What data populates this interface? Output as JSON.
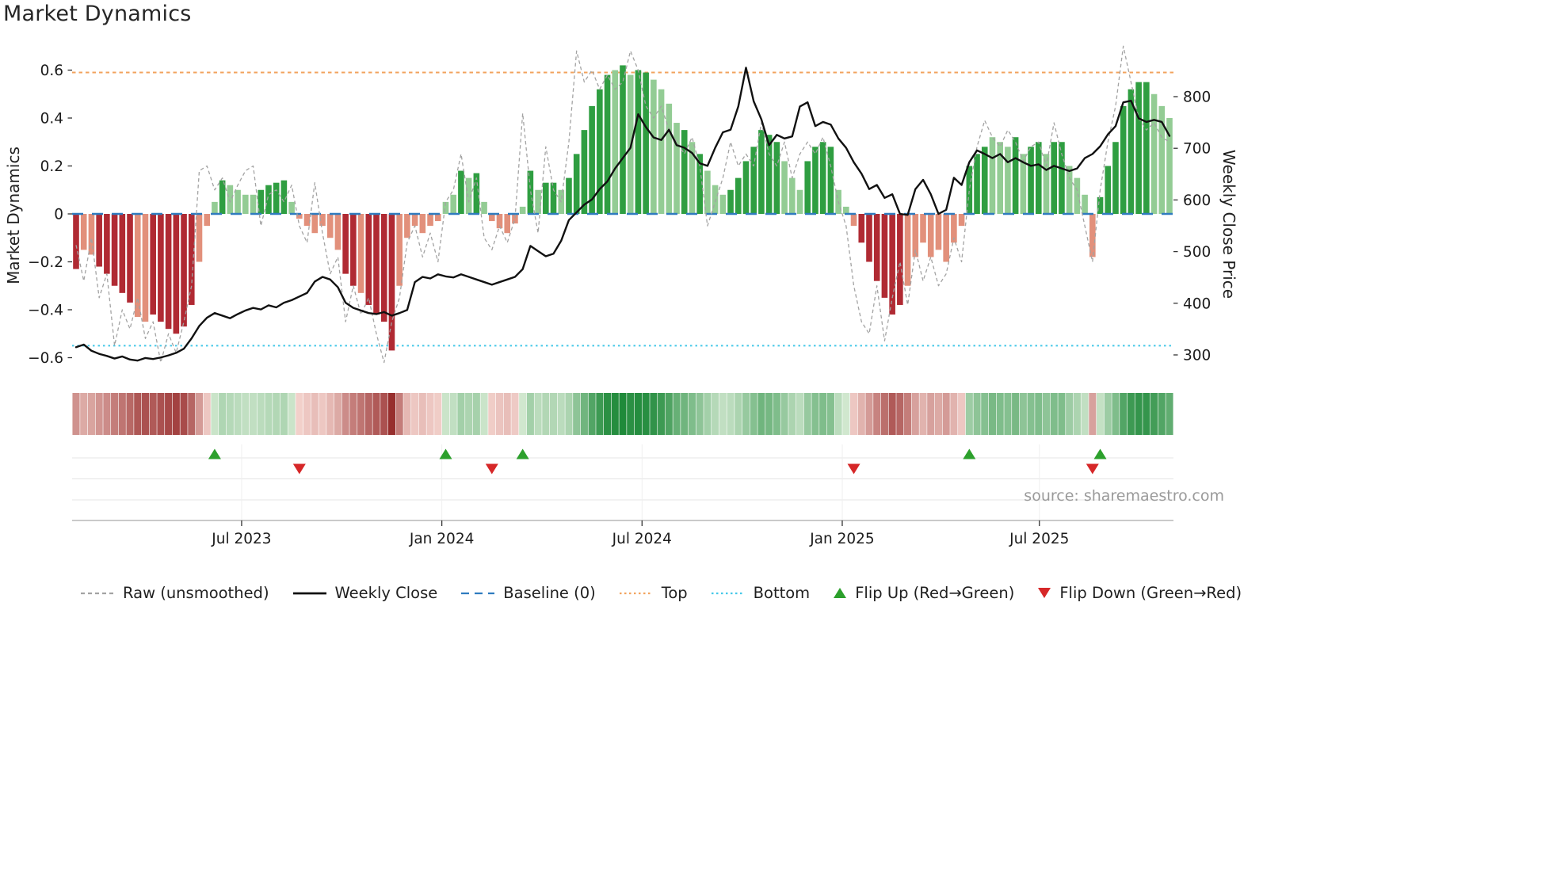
{
  "chart_data": {
    "type": "bar",
    "title": "Market Dynamics",
    "source": "source: sharemaestro.com",
    "left_axis": {
      "label": "Market Dynamics",
      "min": -0.7,
      "max": 0.7,
      "ticks": [
        {
          "v": 0.6,
          "label": "0.6"
        },
        {
          "v": 0.4,
          "label": "0.4"
        },
        {
          "v": 0.2,
          "label": "0.2"
        },
        {
          "v": 0,
          "label": "0"
        },
        {
          "v": -0.2,
          "label": "−0.2"
        },
        {
          "v": -0.4,
          "label": "−0.4"
        },
        {
          "v": -0.6,
          "label": "−0.6"
        }
      ]
    },
    "right_axis": {
      "label": "Weekly Close Price",
      "min": 250,
      "max": 895,
      "ticks": [
        {
          "v": 800,
          "label": "800"
        },
        {
          "v": 700,
          "label": "700"
        },
        {
          "v": 600,
          "label": "600"
        },
        {
          "v": 500,
          "label": "500"
        },
        {
          "v": 400,
          "label": "400"
        },
        {
          "v": 300,
          "label": "300"
        }
      ]
    },
    "x_ticks": [
      {
        "pos": 21.5,
        "label": "Jul 2023"
      },
      {
        "pos": 47.5,
        "label": "Jan 2024"
      },
      {
        "pos": 73.5,
        "label": "Jul 2024"
      },
      {
        "pos": 99.5,
        "label": "Jan 2025"
      },
      {
        "pos": 125.1,
        "label": "Jul 2025"
      }
    ],
    "reference_lines": {
      "baseline": 0,
      "top": 0.59,
      "bottom": -0.55
    },
    "series": {
      "oscillator": [
        -0.23,
        -0.15,
        -0.17,
        -0.22,
        -0.25,
        -0.3,
        -0.33,
        -0.37,
        -0.43,
        -0.45,
        -0.42,
        -0.45,
        -0.48,
        -0.5,
        -0.47,
        -0.38,
        -0.2,
        -0.05,
        0.05,
        0.14,
        0.12,
        0.1,
        0.08,
        0.08,
        0.1,
        0.12,
        0.13,
        0.14,
        0.05,
        -0.02,
        -0.05,
        -0.08,
        -0.05,
        -0.1,
        -0.15,
        -0.25,
        -0.3,
        -0.33,
        -0.38,
        -0.42,
        -0.45,
        -0.57,
        -0.3,
        -0.1,
        -0.05,
        -0.08,
        -0.05,
        -0.03,
        0.05,
        0.08,
        0.18,
        0.15,
        0.17,
        0.05,
        -0.03,
        -0.06,
        -0.08,
        -0.04,
        0.03,
        0.18,
        0.1,
        0.13,
        0.13,
        0.1,
        0.15,
        0.25,
        0.35,
        0.45,
        0.52,
        0.58,
        0.6,
        0.62,
        0.58,
        0.6,
        0.59,
        0.56,
        0.52,
        0.46,
        0.38,
        0.35,
        0.3,
        0.25,
        0.18,
        0.12,
        0.08,
        0.1,
        0.15,
        0.22,
        0.28,
        0.35,
        0.33,
        0.3,
        0.22,
        0.15,
        0.1,
        0.22,
        0.28,
        0.3,
        0.28,
        0.1,
        0.03,
        -0.05,
        -0.12,
        -0.2,
        -0.28,
        -0.35,
        -0.42,
        -0.38,
        -0.3,
        -0.18,
        -0.12,
        -0.18,
        -0.15,
        -0.2,
        -0.12,
        -0.05,
        0.2,
        0.25,
        0.28,
        0.32,
        0.3,
        0.28,
        0.32,
        0.25,
        0.28,
        0.3,
        0.25,
        0.3,
        0.3,
        0.2,
        0.15,
        0.08,
        -0.18,
        0.07,
        0.2,
        0.3,
        0.45,
        0.52,
        0.55,
        0.55,
        0.5,
        0.45,
        0.4
      ],
      "bar_shades": [
        "dr",
        "lr",
        "lr",
        "dr",
        "dr",
        "dr",
        "dr",
        "dr",
        "lr",
        "lr",
        "dr",
        "dr",
        "dr",
        "dr",
        "dr",
        "dr",
        "lr",
        "lr",
        "lg",
        "dg",
        "lg",
        "lg",
        "lg",
        "lg",
        "dg",
        "dg",
        "dg",
        "dg",
        "lg",
        "lr",
        "lr",
        "lr",
        "lr",
        "lr",
        "lr",
        "dr",
        "dr",
        "lr",
        "dr",
        "dr",
        "dr",
        "dr",
        "lr",
        "lr",
        "lr",
        "lr",
        "lr",
        "lr",
        "lg",
        "lg",
        "dg",
        "lg",
        "dg",
        "lg",
        "lr",
        "lr",
        "lr",
        "lr",
        "lg",
        "dg",
        "lg",
        "dg",
        "dg",
        "lg",
        "dg",
        "dg",
        "dg",
        "dg",
        "dg",
        "dg",
        "lg",
        "dg",
        "lg",
        "dg",
        "dg",
        "lg",
        "lg",
        "lg",
        "lg",
        "dg",
        "lg",
        "dg",
        "lg",
        "lg",
        "lg",
        "dg",
        "dg",
        "dg",
        "dg",
        "dg",
        "dg",
        "dg",
        "lg",
        "lg",
        "lg",
        "dg",
        "dg",
        "dg",
        "dg",
        "lg",
        "lg",
        "lr",
        "dr",
        "dr",
        "dr",
        "dr",
        "dr",
        "dr",
        "lr",
        "lr",
        "lr",
        "lr",
        "lr",
        "lr",
        "lr",
        "lr",
        "dg",
        "dg",
        "dg",
        "lg",
        "lg",
        "lg",
        "dg",
        "lg",
        "dg",
        "dg",
        "lg",
        "dg",
        "dg",
        "lg",
        "lg",
        "lg",
        "lr",
        "dg",
        "dg",
        "dg",
        "dg",
        "dg",
        "dg",
        "dg",
        "lg",
        "lg",
        "lg"
      ],
      "weekly_close": [
        315,
        320,
        308,
        302,
        298,
        293,
        297,
        291,
        289,
        294,
        292,
        295,
        299,
        304,
        312,
        332,
        356,
        372,
        381,
        376,
        371,
        379,
        386,
        391,
        388,
        396,
        392,
        401,
        406,
        413,
        420,
        442,
        451,
        446,
        431,
        401,
        391,
        386,
        381,
        379,
        383,
        376,
        381,
        387,
        441,
        451,
        448,
        456,
        452,
        450,
        456,
        451,
        446,
        441,
        436,
        441,
        446,
        451,
        466,
        511,
        501,
        491,
        496,
        521,
        561,
        576,
        591,
        601,
        621,
        636,
        661,
        681,
        701,
        766,
        741,
        721,
        716,
        736,
        706,
        701,
        691,
        671,
        666,
        701,
        731,
        736,
        781,
        856,
        791,
        756,
        706,
        726,
        719,
        723,
        781,
        789,
        743,
        751,
        746,
        719,
        701,
        673,
        651,
        621,
        629,
        604,
        611,
        573,
        571,
        621,
        639,
        611,
        573,
        581,
        643,
        629,
        673,
        696,
        689,
        681,
        689,
        673,
        681,
        673,
        666,
        669,
        658,
        666,
        661,
        656,
        661,
        681,
        689,
        704,
        727,
        743,
        789,
        792,
        758,
        751,
        755,
        751,
        724
      ],
      "raw": [
        -0.13,
        -0.28,
        -0.1,
        -0.35,
        -0.25,
        -0.55,
        -0.4,
        -0.48,
        -0.35,
        -0.52,
        -0.45,
        -0.62,
        -0.5,
        -0.58,
        -0.45,
        -0.3,
        0.18,
        0.2,
        0.1,
        0.15,
        0.05,
        0.12,
        0.18,
        0.2,
        -0.05,
        0.08,
        0.1,
        0.05,
        0.12,
        -0.05,
        -0.12,
        0.13,
        -0.08,
        -0.25,
        -0.18,
        -0.45,
        -0.3,
        -0.42,
        -0.35,
        -0.5,
        -0.62,
        -0.45,
        -0.35,
        -0.12,
        -0.05,
        -0.18,
        -0.08,
        -0.2,
        0.05,
        0.1,
        0.25,
        0.05,
        0.15,
        -0.1,
        -0.15,
        -0.05,
        -0.12,
        -0.02,
        0.42,
        0.1,
        -0.08,
        0.28,
        0.1,
        0.05,
        0.3,
        0.68,
        0.55,
        0.6,
        0.52,
        0.58,
        0.52,
        0.55,
        0.68,
        0.6,
        0.45,
        0.4,
        0.45,
        0.35,
        0.3,
        0.25,
        0.32,
        0.2,
        -0.05,
        0.05,
        0.15,
        0.3,
        0.2,
        0.25,
        0.2,
        0.38,
        0.25,
        0.2,
        0.3,
        0.15,
        0.25,
        0.3,
        0.25,
        0.32,
        0.2,
        0.05,
        -0.05,
        -0.3,
        -0.45,
        -0.5,
        -0.3,
        -0.53,
        -0.35,
        -0.2,
        -0.38,
        -0.15,
        -0.28,
        -0.18,
        -0.3,
        -0.25,
        -0.1,
        -0.2,
        0.1,
        0.28,
        0.39,
        0.32,
        0.28,
        0.35,
        0.3,
        0.22,
        0.28,
        0.3,
        0.2,
        0.38,
        0.25,
        0.15,
        0.1,
        -0.05,
        -0.2,
        0.1,
        0.3,
        0.45,
        0.7,
        0.55,
        0.4,
        0.35,
        0.38,
        0.32,
        0.3
      ]
    },
    "flip_up_weeks": [
      18,
      48,
      58,
      116,
      133
    ],
    "flip_down_weeks": [
      29,
      54,
      101,
      132
    ],
    "palette": {
      "bar_dark_red": "#b02a33",
      "bar_light_red": "#e2907b",
      "bar_dark_green": "#2f9e41",
      "bar_light_green": "#93cc94",
      "heat_red_light": "#f5d6d0",
      "heat_red_dark": "#8f1f1f",
      "heat_green_light": "#d9ecd6",
      "heat_green_dark": "#1f8a3a",
      "raw_line": "#a3a3a3",
      "close_line": "#111111",
      "baseline": "#2f7bbf",
      "top_line": "#f2a35e",
      "bottom_line": "#45c8e8",
      "flip_up": "#2ca02c",
      "flip_down": "#d62728"
    },
    "legend": [
      {
        "label": "Raw (unsmoothed)",
        "type": "dash",
        "color": "#a3a3a3"
      },
      {
        "label": "Weekly Close",
        "type": "solid",
        "color": "#111111"
      },
      {
        "label": "Baseline (0)",
        "type": "longdash",
        "color": "#2f7bbf"
      },
      {
        "label": "Top",
        "type": "dot",
        "color": "#f2a35e"
      },
      {
        "label": "Bottom",
        "type": "dot",
        "color": "#45c8e8"
      },
      {
        "label": "Flip Up (Red→Green)",
        "type": "tri-up",
        "color": "#2ca02c"
      },
      {
        "label": "Flip Down (Green→Red)",
        "type": "tri-down",
        "color": "#d62728"
      }
    ]
  }
}
